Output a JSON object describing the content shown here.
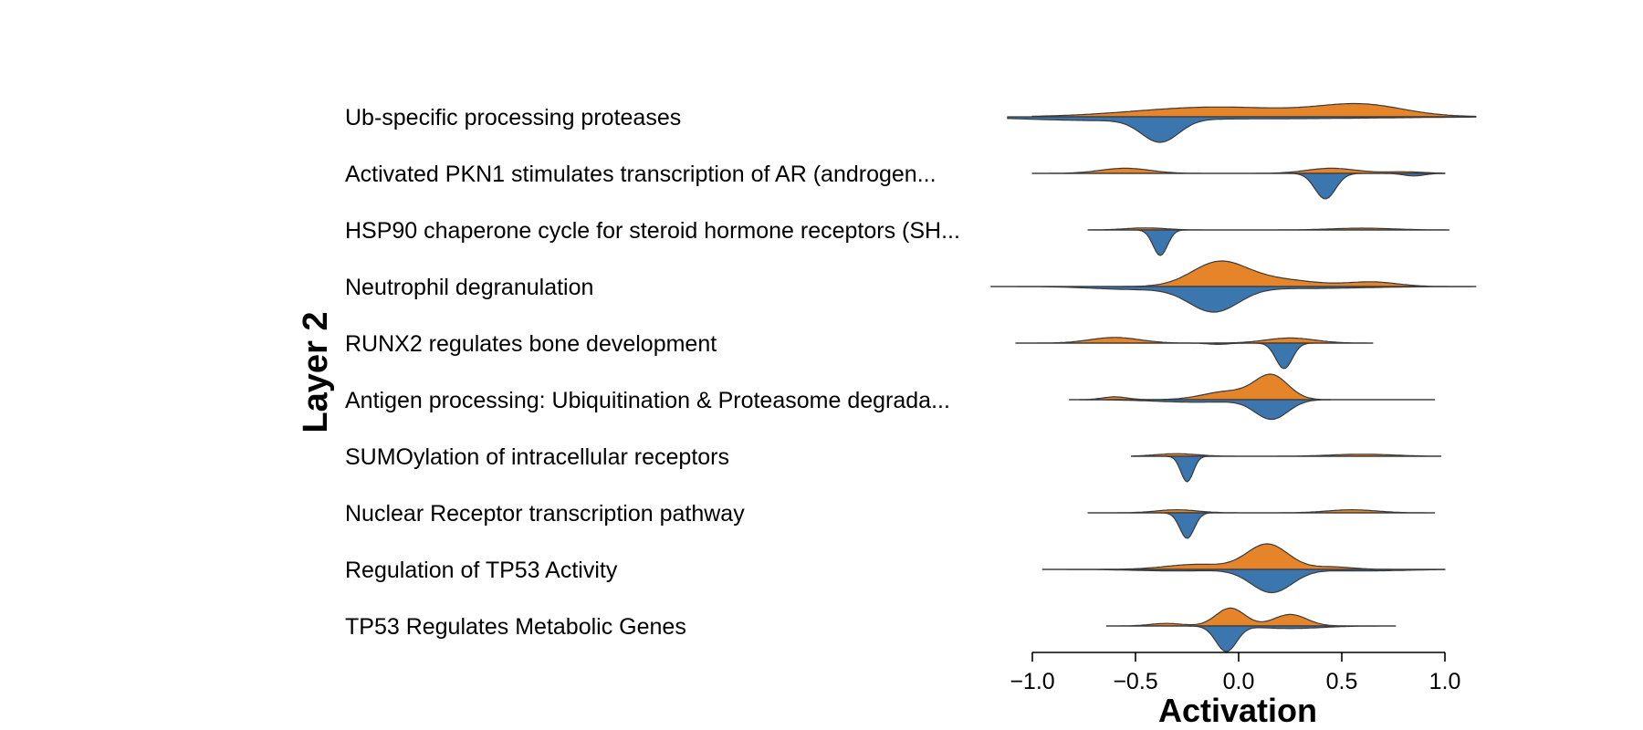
{
  "chart_data": {
    "type": "violin",
    "orientation": "horizontal",
    "split": true,
    "ylabel": "Layer 2",
    "xlabel": "Activation",
    "xlim": [
      -1.25,
      1.25
    ],
    "xticks": [
      -1.0,
      -0.5,
      0.0,
      0.5,
      1.0
    ],
    "xtick_labels": [
      "−1.0",
      "−0.5",
      "0.0",
      "0.5",
      "1.0"
    ],
    "grid": false,
    "colors": {
      "upper": "#e6842a",
      "lower": "#3b76af",
      "outline": "#3a3a3a"
    },
    "categories": [
      {
        "label": "Ub-specific processing proteases",
        "upper": {
          "min": -1.0,
          "max": 1.15,
          "peaks": [
            [
              -0.2,
              0.28,
              0.35
            ],
            [
              0.6,
              0.4,
              0.2
            ],
            [
              0.2,
              0.15,
              0.4
            ]
          ]
        },
        "lower": {
          "min": -1.12,
          "max": 1.15,
          "peaks": [
            [
              -0.38,
              1.0,
              0.09
            ],
            [
              -0.7,
              0.15,
              0.35
            ],
            [
              0.2,
              0.08,
              0.5
            ]
          ]
        }
      },
      {
        "label": "Activated PKN1 stimulates transcription of AR (androgen...",
        "upper": {
          "min": -1.0,
          "max": 1.0,
          "peaks": [
            [
              -0.55,
              0.2,
              0.12
            ],
            [
              0.45,
              0.2,
              0.12
            ],
            [
              0.8,
              0.06,
              0.1
            ]
          ]
        },
        "lower": {
          "min": -1.0,
          "max": 1.0,
          "peaks": [
            [
              0.42,
              1.0,
              0.05
            ],
            [
              0.85,
              0.1,
              0.05
            ]
          ]
        }
      },
      {
        "label": "HSP90 chaperone cycle for steroid hormone receptors (SH...",
        "upper": {
          "min": -0.73,
          "max": 1.02,
          "peaks": [
            [
              -0.45,
              0.08,
              0.1
            ],
            [
              0.6,
              0.07,
              0.15
            ]
          ]
        },
        "lower": {
          "min": -0.73,
          "max": 1.02,
          "peaks": [
            [
              -0.38,
              1.0,
              0.035
            ]
          ]
        }
      },
      {
        "label": "Neutrophil degranulation",
        "upper": {
          "min": -1.2,
          "max": 1.15,
          "peaks": [
            [
              -0.1,
              1.0,
              0.13
            ],
            [
              0.15,
              0.35,
              0.2
            ],
            [
              0.65,
              0.2,
              0.12
            ]
          ]
        },
        "lower": {
          "min": -1.2,
          "max": 1.15,
          "peaks": [
            [
              -0.12,
              1.0,
              0.12
            ],
            [
              -0.5,
              0.12,
              0.2
            ],
            [
              0.3,
              0.08,
              0.3
            ]
          ]
        }
      },
      {
        "label": "RUNX2 regulates bone development",
        "upper": {
          "min": -1.08,
          "max": 0.65,
          "peaks": [
            [
              -0.6,
              0.22,
              0.12
            ],
            [
              0.25,
              0.2,
              0.12
            ]
          ]
        },
        "lower": {
          "min": -1.08,
          "max": 0.65,
          "peaks": [
            [
              0.22,
              1.0,
              0.04
            ],
            [
              -0.1,
              0.05,
              0.05
            ]
          ]
        }
      },
      {
        "label": "Antigen processing: Ubiquitination & Proteasome degrada...",
        "upper": {
          "min": -0.82,
          "max": 0.95,
          "peaks": [
            [
              0.16,
              1.0,
              0.08
            ],
            [
              -0.05,
              0.35,
              0.12
            ],
            [
              -0.6,
              0.12,
              0.06
            ]
          ]
        },
        "lower": {
          "min": -0.82,
          "max": 0.95,
          "peaks": [
            [
              0.16,
              0.75,
              0.08
            ],
            [
              -0.2,
              0.1,
              0.2
            ]
          ]
        }
      },
      {
        "label": "SUMOylation of intracellular receptors",
        "upper": {
          "min": -0.52,
          "max": 0.98,
          "peaks": [
            [
              -0.3,
              0.1,
              0.1
            ],
            [
              0.6,
              0.08,
              0.15
            ]
          ]
        },
        "lower": {
          "min": -0.52,
          "max": 0.98,
          "peaks": [
            [
              -0.25,
              1.0,
              0.03
            ]
          ]
        }
      },
      {
        "label": "Nuclear Receptor transcription pathway",
        "upper": {
          "min": -0.73,
          "max": 0.95,
          "peaks": [
            [
              -0.3,
              0.12,
              0.1
            ],
            [
              0.55,
              0.12,
              0.12
            ]
          ]
        },
        "lower": {
          "min": -0.73,
          "max": 0.95,
          "peaks": [
            [
              -0.25,
              1.0,
              0.035
            ]
          ]
        }
      },
      {
        "label": "Regulation of TP53 Activity",
        "upper": {
          "min": -0.95,
          "max": 1.0,
          "peaks": [
            [
              0.14,
              1.0,
              0.1
            ],
            [
              -0.2,
              0.2,
              0.15
            ],
            [
              0.45,
              0.1,
              0.1
            ]
          ]
        },
        "lower": {
          "min": -0.95,
          "max": 1.0,
          "peaks": [
            [
              0.16,
              0.9,
              0.1
            ],
            [
              -0.3,
              0.06,
              0.2
            ],
            [
              0.6,
              0.06,
              0.2
            ]
          ]
        }
      },
      {
        "label": "TP53 Regulates Metabolic Genes",
        "upper": {
          "min": -0.64,
          "max": 0.76,
          "peaks": [
            [
              -0.04,
              0.7,
              0.07
            ],
            [
              0.25,
              0.45,
              0.08
            ],
            [
              -0.35,
              0.1,
              0.08
            ]
          ]
        },
        "lower": {
          "min": -0.64,
          "max": 0.76,
          "peaks": [
            [
              -0.06,
              1.0,
              0.05
            ],
            [
              0.25,
              0.1,
              0.15
            ]
          ]
        }
      }
    ]
  }
}
